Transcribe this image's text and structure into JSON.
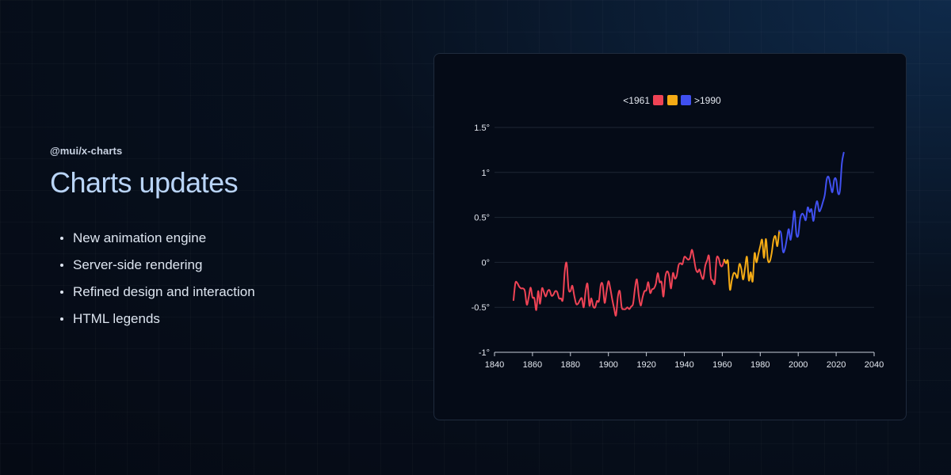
{
  "header": {
    "package": "@mui/x-charts",
    "title": "Charts updates"
  },
  "features": [
    "New animation engine",
    "Server-side rendering",
    "Refined design and interaction",
    "HTML legends"
  ],
  "colors": {
    "red": "#ef4355",
    "orange": "#f5ab15",
    "blue": "#4050f0",
    "grid": "#1e2735",
    "tick_text": "#e4e9f1"
  },
  "chart_data": {
    "type": "line",
    "title": "",
    "xlabel": "",
    "ylabel": "",
    "xlim": [
      1840,
      2040
    ],
    "ylim": [
      -1,
      1.5
    ],
    "x_ticks": [
      "1840",
      "1860",
      "1880",
      "1900",
      "1920",
      "1940",
      "1960",
      "1980",
      "2000",
      "2020",
      "2040"
    ],
    "y_ticks": [
      "-1°",
      "-0.5°",
      "0°",
      "0.5°",
      "1°",
      "1.5°"
    ],
    "legend": {
      "placement": "top-center",
      "items": [
        {
          "label": "<1961",
          "color": "#ef4355",
          "label_side": "left"
        },
        {
          "label": "",
          "color": "#f5ab15",
          "label_side": "none"
        },
        {
          "label": ">1990",
          "color": "#4050f0",
          "label_side": "right"
        }
      ]
    },
    "series": [
      {
        "color": "#ef4355",
        "x": [
          1850,
          1851,
          1852,
          1853,
          1854,
          1855,
          1856,
          1857,
          1858,
          1859,
          1860,
          1861,
          1862,
          1863,
          1864,
          1865,
          1866,
          1867,
          1868,
          1869,
          1870,
          1871,
          1872,
          1873,
          1874,
          1875,
          1876,
          1877,
          1878,
          1879,
          1880,
          1881,
          1882,
          1883,
          1884,
          1885,
          1886,
          1887,
          1888,
          1889,
          1890,
          1891,
          1892,
          1893,
          1894,
          1895,
          1896,
          1897,
          1898,
          1899,
          1900,
          1901,
          1902,
          1903,
          1904,
          1905,
          1906,
          1907,
          1908,
          1909,
          1910,
          1911,
          1912,
          1913,
          1914,
          1915,
          1916,
          1917,
          1918,
          1919,
          1920,
          1921,
          1922,
          1923,
          1924,
          1925,
          1926,
          1927,
          1928,
          1929,
          1930,
          1931,
          1932,
          1933,
          1934,
          1935,
          1936,
          1937,
          1938,
          1939,
          1940,
          1941,
          1942,
          1943,
          1944,
          1945,
          1946,
          1947,
          1948,
          1949,
          1950,
          1951,
          1952,
          1953,
          1954,
          1955,
          1956,
          1957,
          1958,
          1959,
          1960,
          1961
        ],
        "y": [
          -0.42,
          -0.23,
          -0.23,
          -0.27,
          -0.29,
          -0.29,
          -0.32,
          -0.47,
          -0.39,
          -0.28,
          -0.39,
          -0.4,
          -0.53,
          -0.32,
          -0.46,
          -0.29,
          -0.33,
          -0.38,
          -0.32,
          -0.31,
          -0.37,
          -0.36,
          -0.32,
          -0.33,
          -0.4,
          -0.4,
          -0.41,
          -0.1,
          -0.01,
          -0.29,
          -0.32,
          -0.26,
          -0.37,
          -0.46,
          -0.46,
          -0.42,
          -0.4,
          -0.5,
          -0.32,
          -0.24,
          -0.48,
          -0.4,
          -0.49,
          -0.5,
          -0.43,
          -0.43,
          -0.25,
          -0.25,
          -0.45,
          -0.33,
          -0.21,
          -0.29,
          -0.41,
          -0.51,
          -0.59,
          -0.38,
          -0.32,
          -0.5,
          -0.52,
          -0.52,
          -0.5,
          -0.52,
          -0.49,
          -0.46,
          -0.29,
          -0.19,
          -0.37,
          -0.48,
          -0.39,
          -0.32,
          -0.31,
          -0.22,
          -0.34,
          -0.3,
          -0.29,
          -0.24,
          -0.12,
          -0.22,
          -0.22,
          -0.38,
          -0.16,
          -0.1,
          -0.15,
          -0.29,
          -0.12,
          -0.18,
          -0.15,
          -0.03,
          -0.01,
          -0.02,
          0.06,
          0.05,
          0.03,
          0.05,
          0.14,
          0.05,
          -0.07,
          -0.11,
          -0.08,
          -0.15,
          -0.18,
          -0.04,
          0.02,
          0.07,
          -0.17,
          -0.2,
          -0.23,
          0.04,
          0.05,
          -0.03,
          -0.04,
          0.03
        ]
      },
      {
        "color": "#f5ab15",
        "x": [
          1961,
          1962,
          1963,
          1964,
          1965,
          1966,
          1967,
          1968,
          1969,
          1970,
          1971,
          1972,
          1973,
          1974,
          1975,
          1976,
          1977,
          1978,
          1979,
          1980,
          1981,
          1982,
          1983,
          1984,
          1985,
          1986,
          1987,
          1988,
          1989,
          1990
        ],
        "y": [
          0.03,
          -0.01,
          0.01,
          -0.3,
          -0.2,
          -0.12,
          -0.13,
          -0.17,
          -0.02,
          -0.07,
          -0.19,
          -0.06,
          0.06,
          -0.2,
          -0.11,
          -0.21,
          0.1,
          0.0,
          0.09,
          0.18,
          0.25,
          0.05,
          0.26,
          0.03,
          0.01,
          0.1,
          0.25,
          0.29,
          0.18,
          0.35
        ]
      },
      {
        "color": "#4050f0",
        "x": [
          1990,
          1991,
          1992,
          1993,
          1994,
          1995,
          1996,
          1997,
          1998,
          1999,
          2000,
          2001,
          2002,
          2003,
          2004,
          2005,
          2006,
          2007,
          2008,
          2009,
          2010,
          2011,
          2012,
          2013,
          2014,
          2015,
          2016,
          2017,
          2018,
          2019,
          2020,
          2021,
          2022,
          2023,
          2024
        ],
        "y": [
          0.35,
          0.32,
          0.12,
          0.15,
          0.26,
          0.37,
          0.25,
          0.4,
          0.57,
          0.32,
          0.3,
          0.48,
          0.54,
          0.52,
          0.47,
          0.61,
          0.56,
          0.59,
          0.46,
          0.6,
          0.68,
          0.57,
          0.6,
          0.67,
          0.75,
          0.92,
          0.95,
          0.86,
          0.78,
          0.92,
          0.92,
          0.77,
          0.8,
          1.1,
          1.22
        ]
      }
    ]
  }
}
